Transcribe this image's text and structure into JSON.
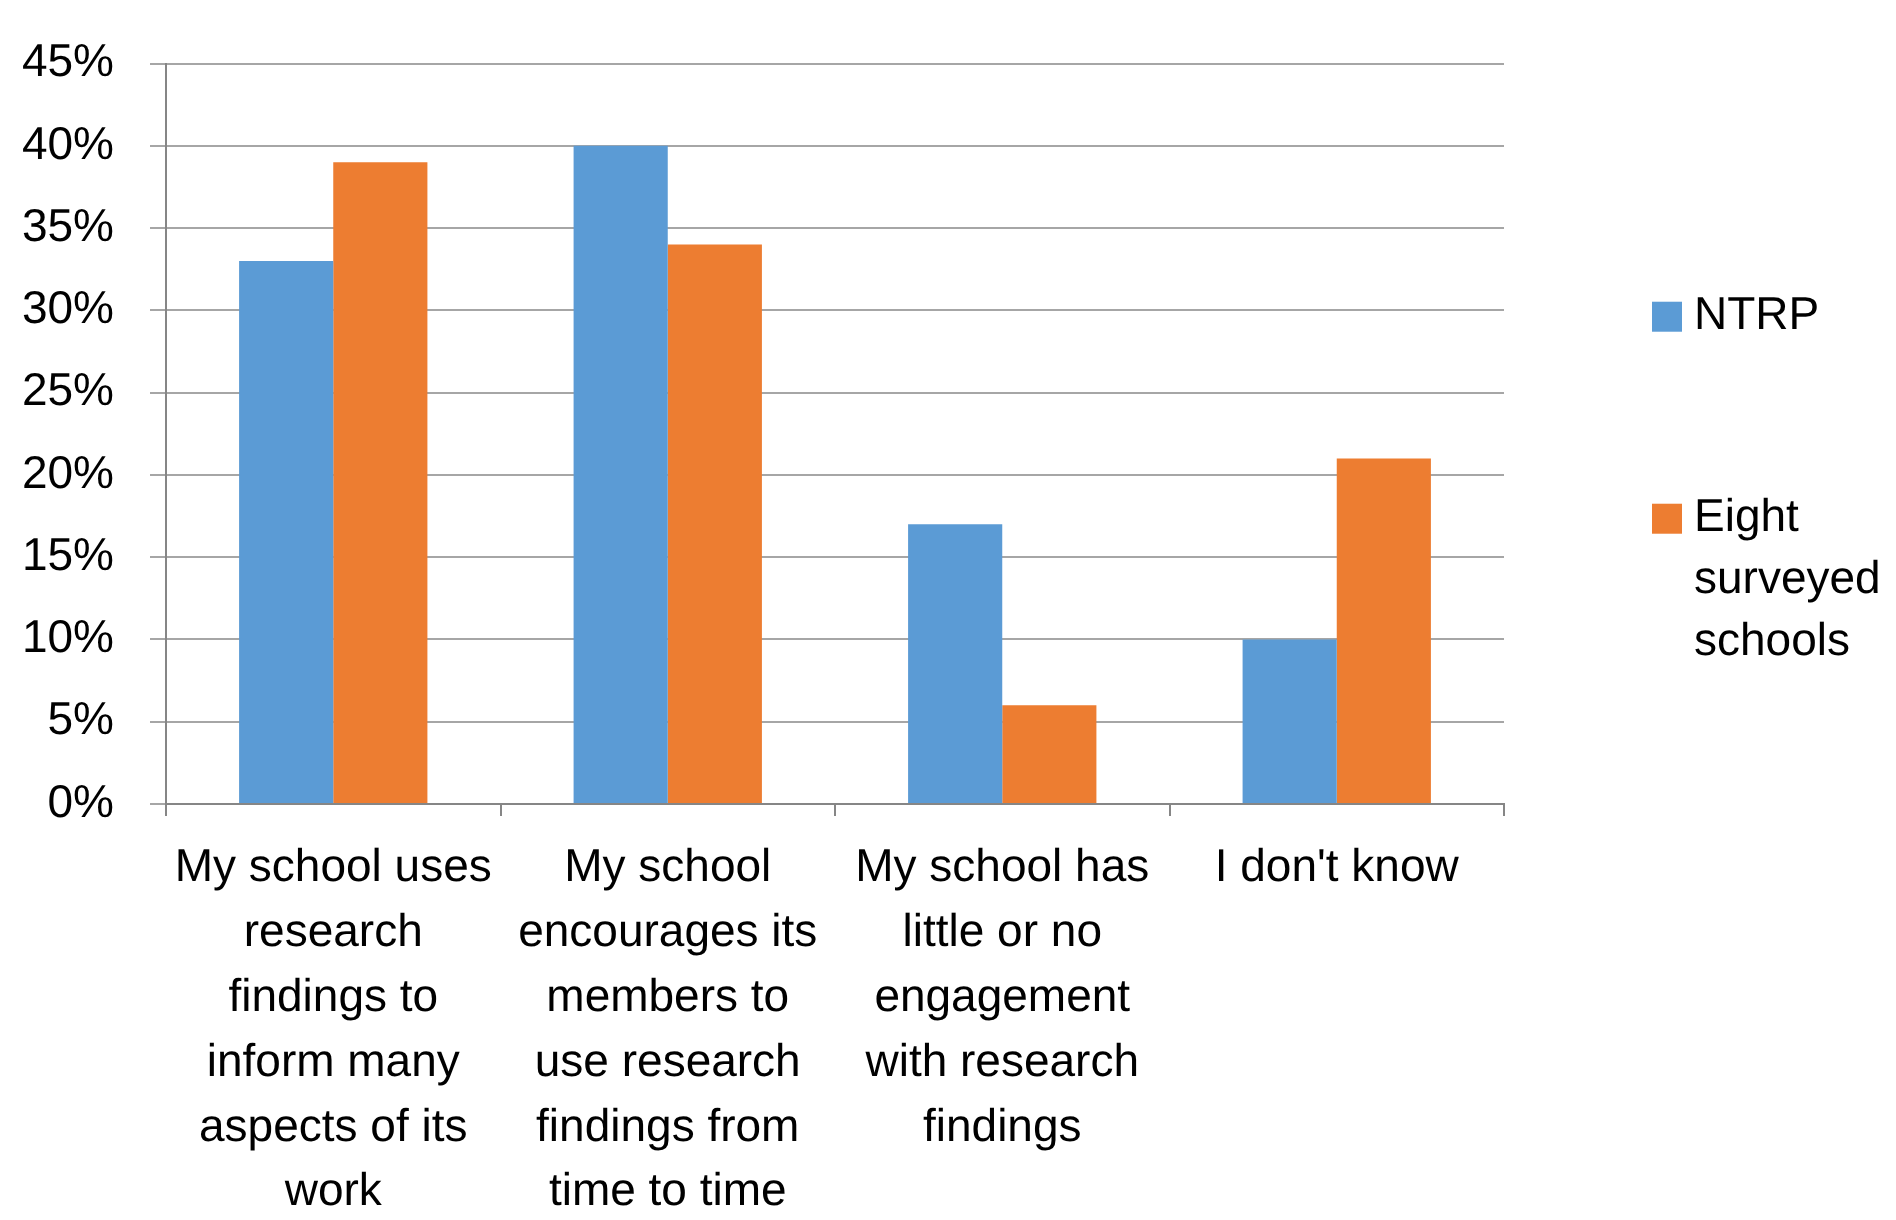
{
  "chart_data": {
    "type": "bar",
    "categories": [
      "My school uses research findings to inform many aspects of its work",
      "My school encourages its members to use research findings from time to time",
      "My school has little or no engagement with research findings",
      "I don't know"
    ],
    "series": [
      {
        "name": "NTRP",
        "color": "#5b9bd5",
        "values": [
          33,
          40,
          17,
          10
        ]
      },
      {
        "name": "Eight surveyed schools",
        "color": "#ed7d31",
        "values": [
          39,
          34,
          6,
          21
        ]
      }
    ],
    "ylim": [
      0,
      45
    ],
    "yticks": [
      {
        "value": 0,
        "label": "0%"
      },
      {
        "value": 5,
        "label": "5%"
      },
      {
        "value": 10,
        "label": "10%"
      },
      {
        "value": 15,
        "label": "15%"
      },
      {
        "value": 20,
        "label": "20%"
      },
      {
        "value": 25,
        "label": "25%"
      },
      {
        "value": 30,
        "label": "30%"
      },
      {
        "value": 35,
        "label": "35%"
      },
      {
        "value": 40,
        "label": "40%"
      },
      {
        "value": 45,
        "label": "45%"
      }
    ],
    "grid": "y",
    "legend": "right"
  }
}
